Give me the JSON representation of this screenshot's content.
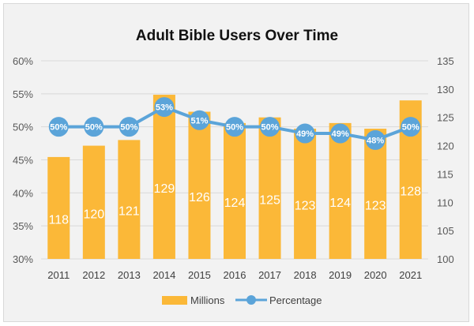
{
  "chart_data": {
    "type": "bar",
    "title": "Adult Bible Users Over Time",
    "categories": [
      "2011",
      "2012",
      "2013",
      "2014",
      "2015",
      "2016",
      "2017",
      "2018",
      "2019",
      "2020",
      "2021"
    ],
    "series": [
      {
        "name": "Millions",
        "type": "bar",
        "axis": "right",
        "color": "#fbb838",
        "values": [
          118,
          120,
          121,
          129,
          126,
          124,
          125,
          123,
          124,
          123,
          128
        ]
      },
      {
        "name": "Percentage",
        "type": "line",
        "axis": "left",
        "color": "#5ba4d9",
        "values": [
          50,
          50,
          50,
          53,
          51,
          50,
          50,
          49,
          49,
          48,
          50
        ],
        "labels": [
          "50%",
          "50%",
          "50%",
          "53%",
          "51%",
          "50%",
          "50%",
          "49%",
          "49%",
          "48%",
          "50%"
        ]
      }
    ],
    "y_left": {
      "range": [
        30,
        60
      ],
      "ticks": [
        "30%",
        "35%",
        "40%",
        "45%",
        "50%",
        "55%",
        "60%"
      ]
    },
    "y_right": {
      "range": [
        100,
        135
      ],
      "ticks": [
        "100",
        "105",
        "110",
        "115",
        "120",
        "125",
        "130",
        "135"
      ]
    },
    "grid": true,
    "legend": {
      "position": "bottom",
      "entries": [
        "Millions",
        "Percentage"
      ]
    }
  }
}
